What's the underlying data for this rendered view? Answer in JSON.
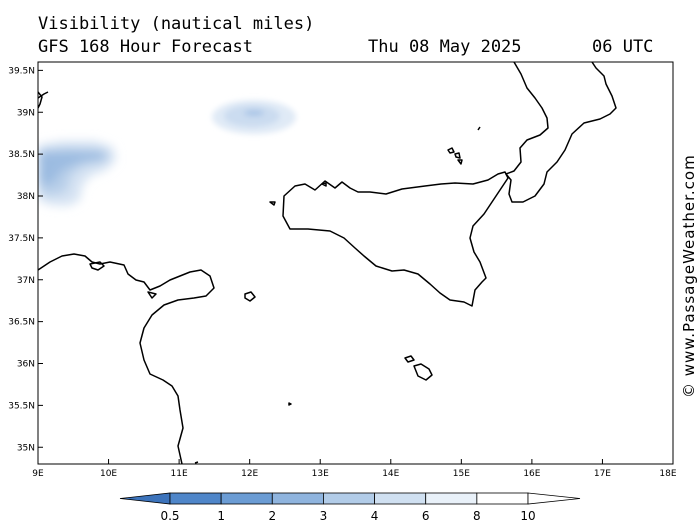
{
  "header": {
    "title": "Visibility (nautical miles)",
    "subtitle": "GFS 168 Hour Forecast",
    "date": "Thu 08 May 2025",
    "time": "06 UTC"
  },
  "watermark": "© www.PassageWeather.com",
  "map": {
    "lon_range": [
      9,
      18
    ],
    "lat_range": [
      34.8,
      39.6
    ],
    "x_ticks": [
      {
        "lon": 9,
        "label": "9E"
      },
      {
        "lon": 10,
        "label": "10E"
      },
      {
        "lon": 11,
        "label": "11E"
      },
      {
        "lon": 12,
        "label": "12E"
      },
      {
        "lon": 13,
        "label": "13E"
      },
      {
        "lon": 14,
        "label": "14E"
      },
      {
        "lon": 15,
        "label": "15E"
      },
      {
        "lon": 16,
        "label": "16E"
      },
      {
        "lon": 17,
        "label": "17E"
      },
      {
        "lon": 18,
        "label": "18E"
      }
    ],
    "y_ticks": [
      {
        "lat": 39.5,
        "label": "39.5N"
      },
      {
        "lat": 39,
        "label": "39N"
      },
      {
        "lat": 38.5,
        "label": "38.5N"
      },
      {
        "lat": 38,
        "label": "38N"
      },
      {
        "lat": 37.5,
        "label": "37.5N"
      },
      {
        "lat": 37,
        "label": "37N"
      },
      {
        "lat": 36.5,
        "label": "36.5N"
      },
      {
        "lat": 36,
        "label": "36N"
      },
      {
        "lat": 35.5,
        "label": "35.5N"
      },
      {
        "lat": 35,
        "label": "35N"
      }
    ],
    "land_color": "#ffffff",
    "coast_color": "#000000"
  },
  "colorbar": {
    "labels": [
      "0.5",
      "1",
      "2",
      "3",
      "4",
      "6",
      "8",
      "10"
    ],
    "colors": [
      "#3c73bb",
      "#4f86c9",
      "#6b9cd4",
      "#8fb4de",
      "#b2cce8",
      "#d0e0f1",
      "#e9f1f9",
      "#ffffff"
    ]
  }
}
